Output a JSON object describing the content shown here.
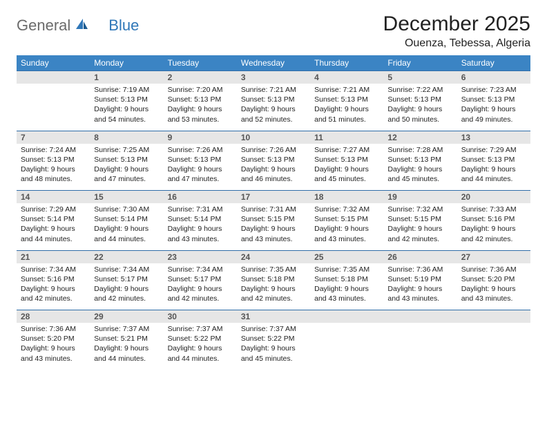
{
  "logo": {
    "general": "General",
    "blue": "Blue"
  },
  "title": "December 2025",
  "location": "Ouenza, Tebessa, Algeria",
  "colors": {
    "header_bg": "#3b84c4",
    "rule": "#2f6da8",
    "daynum_bg": "#e6e6e6",
    "logo_gray": "#6b6b6b",
    "logo_blue": "#2f77b8"
  },
  "weekdays": [
    "Sunday",
    "Monday",
    "Tuesday",
    "Wednesday",
    "Thursday",
    "Friday",
    "Saturday"
  ],
  "weeks": [
    [
      null,
      {
        "n": "1",
        "sr": "7:19 AM",
        "ss": "5:13 PM",
        "dl": "9 hours and 54 minutes."
      },
      {
        "n": "2",
        "sr": "7:20 AM",
        "ss": "5:13 PM",
        "dl": "9 hours and 53 minutes."
      },
      {
        "n": "3",
        "sr": "7:21 AM",
        "ss": "5:13 PM",
        "dl": "9 hours and 52 minutes."
      },
      {
        "n": "4",
        "sr": "7:21 AM",
        "ss": "5:13 PM",
        "dl": "9 hours and 51 minutes."
      },
      {
        "n": "5",
        "sr": "7:22 AM",
        "ss": "5:13 PM",
        "dl": "9 hours and 50 minutes."
      },
      {
        "n": "6",
        "sr": "7:23 AM",
        "ss": "5:13 PM",
        "dl": "9 hours and 49 minutes."
      }
    ],
    [
      {
        "n": "7",
        "sr": "7:24 AM",
        "ss": "5:13 PM",
        "dl": "9 hours and 48 minutes."
      },
      {
        "n": "8",
        "sr": "7:25 AM",
        "ss": "5:13 PM",
        "dl": "9 hours and 47 minutes."
      },
      {
        "n": "9",
        "sr": "7:26 AM",
        "ss": "5:13 PM",
        "dl": "9 hours and 47 minutes."
      },
      {
        "n": "10",
        "sr": "7:26 AM",
        "ss": "5:13 PM",
        "dl": "9 hours and 46 minutes."
      },
      {
        "n": "11",
        "sr": "7:27 AM",
        "ss": "5:13 PM",
        "dl": "9 hours and 45 minutes."
      },
      {
        "n": "12",
        "sr": "7:28 AM",
        "ss": "5:13 PM",
        "dl": "9 hours and 45 minutes."
      },
      {
        "n": "13",
        "sr": "7:29 AM",
        "ss": "5:13 PM",
        "dl": "9 hours and 44 minutes."
      }
    ],
    [
      {
        "n": "14",
        "sr": "7:29 AM",
        "ss": "5:14 PM",
        "dl": "9 hours and 44 minutes."
      },
      {
        "n": "15",
        "sr": "7:30 AM",
        "ss": "5:14 PM",
        "dl": "9 hours and 44 minutes."
      },
      {
        "n": "16",
        "sr": "7:31 AM",
        "ss": "5:14 PM",
        "dl": "9 hours and 43 minutes."
      },
      {
        "n": "17",
        "sr": "7:31 AM",
        "ss": "5:15 PM",
        "dl": "9 hours and 43 minutes."
      },
      {
        "n": "18",
        "sr": "7:32 AM",
        "ss": "5:15 PM",
        "dl": "9 hours and 43 minutes."
      },
      {
        "n": "19",
        "sr": "7:32 AM",
        "ss": "5:15 PM",
        "dl": "9 hours and 42 minutes."
      },
      {
        "n": "20",
        "sr": "7:33 AM",
        "ss": "5:16 PM",
        "dl": "9 hours and 42 minutes."
      }
    ],
    [
      {
        "n": "21",
        "sr": "7:34 AM",
        "ss": "5:16 PM",
        "dl": "9 hours and 42 minutes."
      },
      {
        "n": "22",
        "sr": "7:34 AM",
        "ss": "5:17 PM",
        "dl": "9 hours and 42 minutes."
      },
      {
        "n": "23",
        "sr": "7:34 AM",
        "ss": "5:17 PM",
        "dl": "9 hours and 42 minutes."
      },
      {
        "n": "24",
        "sr": "7:35 AM",
        "ss": "5:18 PM",
        "dl": "9 hours and 42 minutes."
      },
      {
        "n": "25",
        "sr": "7:35 AM",
        "ss": "5:18 PM",
        "dl": "9 hours and 43 minutes."
      },
      {
        "n": "26",
        "sr": "7:36 AM",
        "ss": "5:19 PM",
        "dl": "9 hours and 43 minutes."
      },
      {
        "n": "27",
        "sr": "7:36 AM",
        "ss": "5:20 PM",
        "dl": "9 hours and 43 minutes."
      }
    ],
    [
      {
        "n": "28",
        "sr": "7:36 AM",
        "ss": "5:20 PM",
        "dl": "9 hours and 43 minutes."
      },
      {
        "n": "29",
        "sr": "7:37 AM",
        "ss": "5:21 PM",
        "dl": "9 hours and 44 minutes."
      },
      {
        "n": "30",
        "sr": "7:37 AM",
        "ss": "5:22 PM",
        "dl": "9 hours and 44 minutes."
      },
      {
        "n": "31",
        "sr": "7:37 AM",
        "ss": "5:22 PM",
        "dl": "9 hours and 45 minutes."
      },
      null,
      null,
      null
    ]
  ],
  "labels": {
    "sunrise": "Sunrise: ",
    "sunset": "Sunset: ",
    "daylight": "Daylight: "
  }
}
